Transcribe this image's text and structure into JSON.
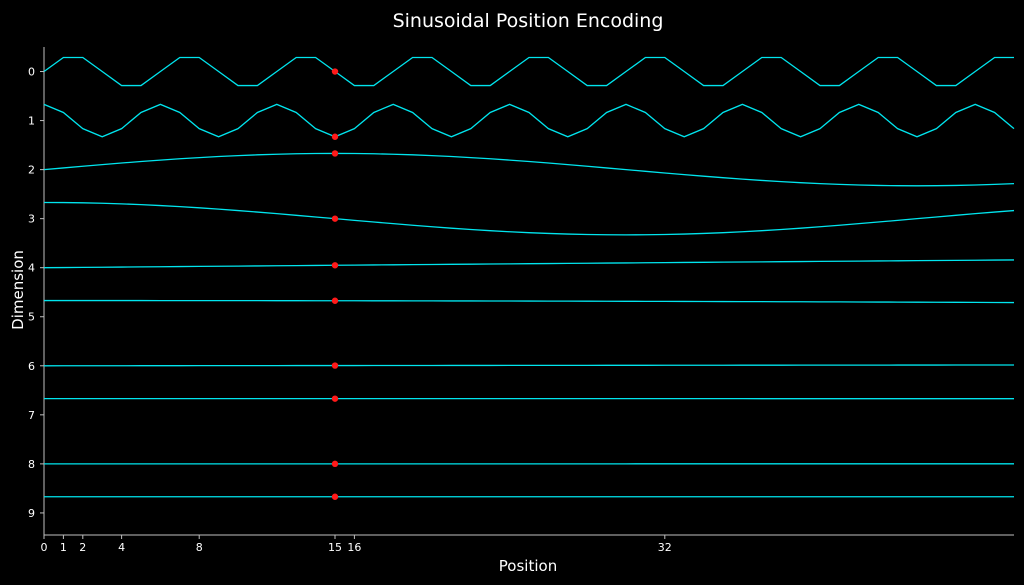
{
  "chart_data": {
    "type": "line",
    "title": "Sinusoidal Position Encoding",
    "xlabel": "Position",
    "ylabel": "Dimension",
    "xlim": [
      0,
      50
    ],
    "ylim": [
      9.45,
      -0.5
    ],
    "x_ticks": [
      0,
      1,
      2,
      4,
      8,
      15,
      16,
      32
    ],
    "y_ticks": [
      0,
      1,
      2,
      3,
      4,
      5,
      6,
      7,
      8,
      9
    ],
    "highlight_position": 15,
    "grid": false,
    "colors": {
      "background": "#000000",
      "line": "#00e5ee",
      "marker": "#ff1a1a",
      "axis": "#bfbfbf",
      "text": "#ffffff"
    },
    "series": [
      {
        "dimension": 0,
        "func": "sin",
        "period": 6,
        "phase": 0,
        "offset": 0,
        "amplitude": 0.33
      },
      {
        "dimension": 1,
        "func": "cos",
        "period": 6,
        "phase": 0,
        "offset": 1,
        "amplitude": 0.33
      },
      {
        "dimension": 2,
        "func": "sin",
        "period": 60,
        "phase": 0,
        "offset": 2,
        "amplitude": 0.33
      },
      {
        "dimension": 3,
        "func": "cos",
        "period": 60,
        "phase": 0,
        "offset": 3,
        "amplitude": 0.33
      },
      {
        "dimension": 4,
        "func": "sin",
        "period": 628,
        "phase": 0,
        "offset": 4,
        "amplitude": 0.33
      },
      {
        "dimension": 5,
        "func": "cos",
        "period": 628,
        "phase": 0,
        "offset": 5,
        "amplitude": 0.33
      },
      {
        "dimension": 6,
        "func": "sin",
        "period": 6283,
        "phase": 0,
        "offset": 6,
        "amplitude": 0.33
      },
      {
        "dimension": 7,
        "func": "cos",
        "period": 6283,
        "phase": 0,
        "offset": 7,
        "amplitude": 0.33
      },
      {
        "dimension": 8,
        "func": "sin",
        "period": 62832,
        "phase": 0,
        "offset": 8,
        "amplitude": 0.33
      },
      {
        "dimension": 9,
        "func": "cos",
        "period": 62832,
        "phase": 0,
        "offset": 9,
        "amplitude": 0.33
      }
    ]
  }
}
